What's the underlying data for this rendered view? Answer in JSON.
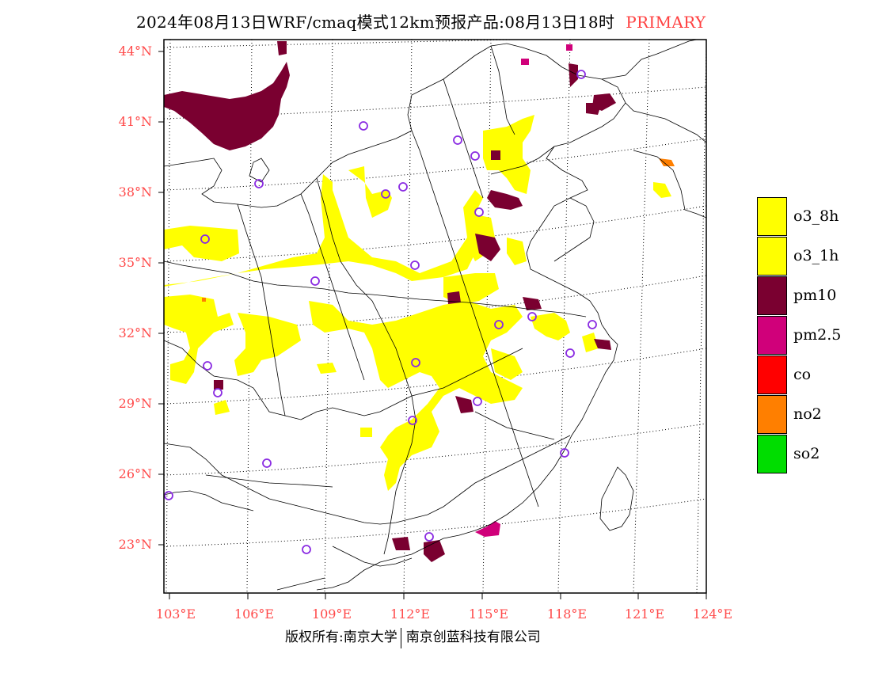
{
  "title": {
    "main": "2024年08月13日WRF/cmaq模式12km预报产品:08月13日18时",
    "tag": "PRIMARY"
  },
  "lat_labels": [
    "44°N",
    "41°N",
    "38°N",
    "35°N",
    "32°N",
    "29°N",
    "26°N",
    "23°N"
  ],
  "lon_labels": [
    "103°E",
    "106°E",
    "109°E",
    "112°E",
    "115°E",
    "118°E",
    "121°E",
    "124°E"
  ],
  "legend": [
    {
      "label": "o3_8h",
      "color": "#ffff00"
    },
    {
      "label": "o3_1h",
      "color": "#ffff00"
    },
    {
      "label": "pm10",
      "color": "#7a0030"
    },
    {
      "label": "pm2.5",
      "color": "#d0007a"
    },
    {
      "label": "co",
      "color": "#ff0000"
    },
    {
      "label": "no2",
      "color": "#ff7f00"
    },
    {
      "label": "so2",
      "color": "#00dd00"
    }
  ],
  "copyright": {
    "left": "版权所有:南京大学",
    "right": "南京创蓝科技有限公司"
  }
}
